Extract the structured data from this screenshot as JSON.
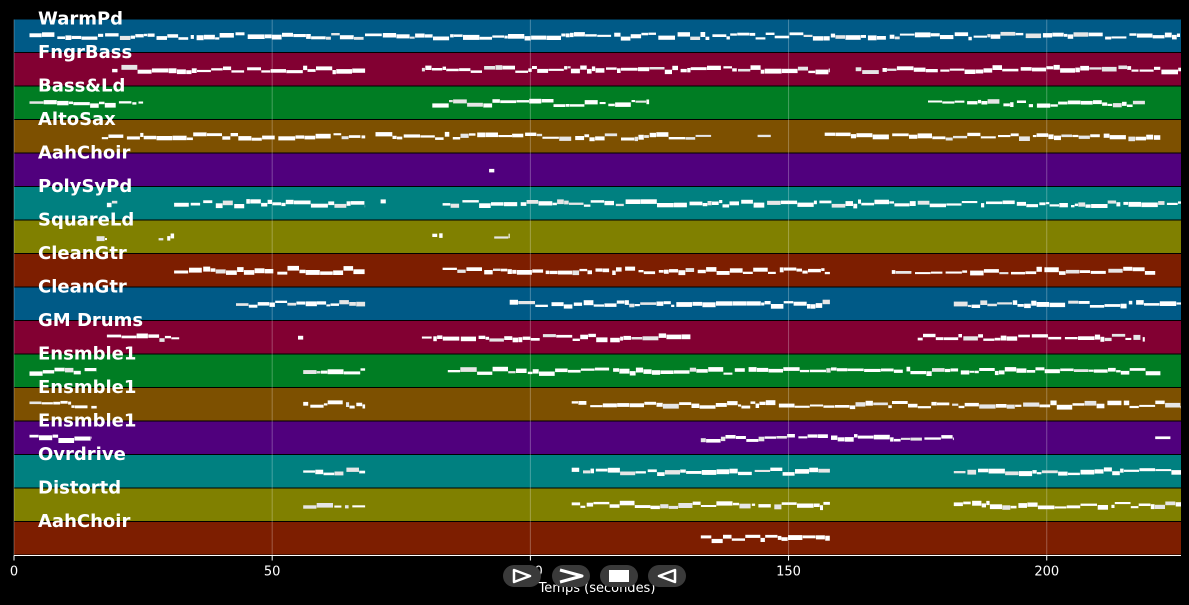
{
  "chart_data": {
    "type": "piano-roll",
    "title": "",
    "xlabel": "Temps (secondes)",
    "ylabel": "",
    "xlim": [
      0,
      226
    ],
    "xticks": [
      0,
      50,
      100,
      150,
      200
    ],
    "grid": true,
    "tracks": [
      {
        "name": "WarmPd",
        "color": "#005a87",
        "segments": [
          [
            3,
            226
          ]
        ]
      },
      {
        "name": "FngrBass",
        "color": "#820032",
        "segments": [
          [
            19,
            68
          ],
          [
            79,
            158
          ],
          [
            163,
            226
          ]
        ]
      },
      {
        "name": "Bass&Ld",
        "color": "#007d23",
        "segments": [
          [
            3,
            25
          ],
          [
            81,
            123
          ],
          [
            177,
            219
          ]
        ]
      },
      {
        "name": "AltoSax",
        "color": "#7d5000",
        "segments": [
          [
            17,
            68
          ],
          [
            70,
            135
          ],
          [
            144,
            147
          ],
          [
            157,
            222
          ]
        ]
      },
      {
        "name": "AahChoir",
        "color": "#50007d",
        "segments": [
          [
            92,
            93
          ]
        ]
      },
      {
        "name": "PolySyPd",
        "color": "#008080",
        "segments": [
          [
            18,
            20
          ],
          [
            31,
            68
          ],
          [
            71,
            72
          ],
          [
            83,
            226
          ]
        ]
      },
      {
        "name": "SquareLd",
        "color": "#808000",
        "segments": [
          [
            16,
            18
          ],
          [
            28,
            31
          ],
          [
            81,
            83
          ],
          [
            93,
            96
          ]
        ]
      },
      {
        "name": "CleanGtr",
        "color": "#7d1e00",
        "segments": [
          [
            31,
            68
          ],
          [
            83,
            158
          ],
          [
            170,
            221
          ]
        ]
      },
      {
        "name": "CleanGtr",
        "color": "#005a87",
        "segments": [
          [
            43,
            68
          ],
          [
            96,
            158
          ],
          [
            182,
            226
          ]
        ]
      },
      {
        "name": "GM Drums",
        "color": "#820032",
        "segments": [
          [
            18,
            32
          ],
          [
            55,
            56
          ],
          [
            79,
            131
          ],
          [
            175,
            219
          ]
        ]
      },
      {
        "name": "Ensmble1",
        "color": "#007d23",
        "segments": [
          [
            3,
            16
          ],
          [
            56,
            68
          ],
          [
            84,
            222
          ]
        ]
      },
      {
        "name": "Ensmble1",
        "color": "#7d5000",
        "segments": [
          [
            3,
            16
          ],
          [
            56,
            68
          ],
          [
            108,
            226
          ]
        ]
      },
      {
        "name": "Ensmble1",
        "color": "#50007d",
        "segments": [
          [
            3,
            15
          ],
          [
            133,
            182
          ],
          [
            221,
            224
          ]
        ]
      },
      {
        "name": "Ovrdrive",
        "color": "#008080",
        "segments": [
          [
            56,
            68
          ],
          [
            108,
            158
          ],
          [
            182,
            226
          ]
        ]
      },
      {
        "name": "Distortd",
        "color": "#808000",
        "segments": [
          [
            56,
            68
          ],
          [
            108,
            158
          ],
          [
            182,
            226
          ]
        ]
      },
      {
        "name": "AahChoir",
        "color": "#7d1e00",
        "segments": [
          [
            133,
            158
          ]
        ]
      }
    ]
  },
  "controls": [
    {
      "name": "play-button",
      "icon": "play-icon"
    },
    {
      "name": "forward-button",
      "icon": "forward-icon"
    },
    {
      "name": "stop-button",
      "icon": "stop-icon"
    },
    {
      "name": "rewind-button",
      "icon": "rewind-icon"
    }
  ]
}
